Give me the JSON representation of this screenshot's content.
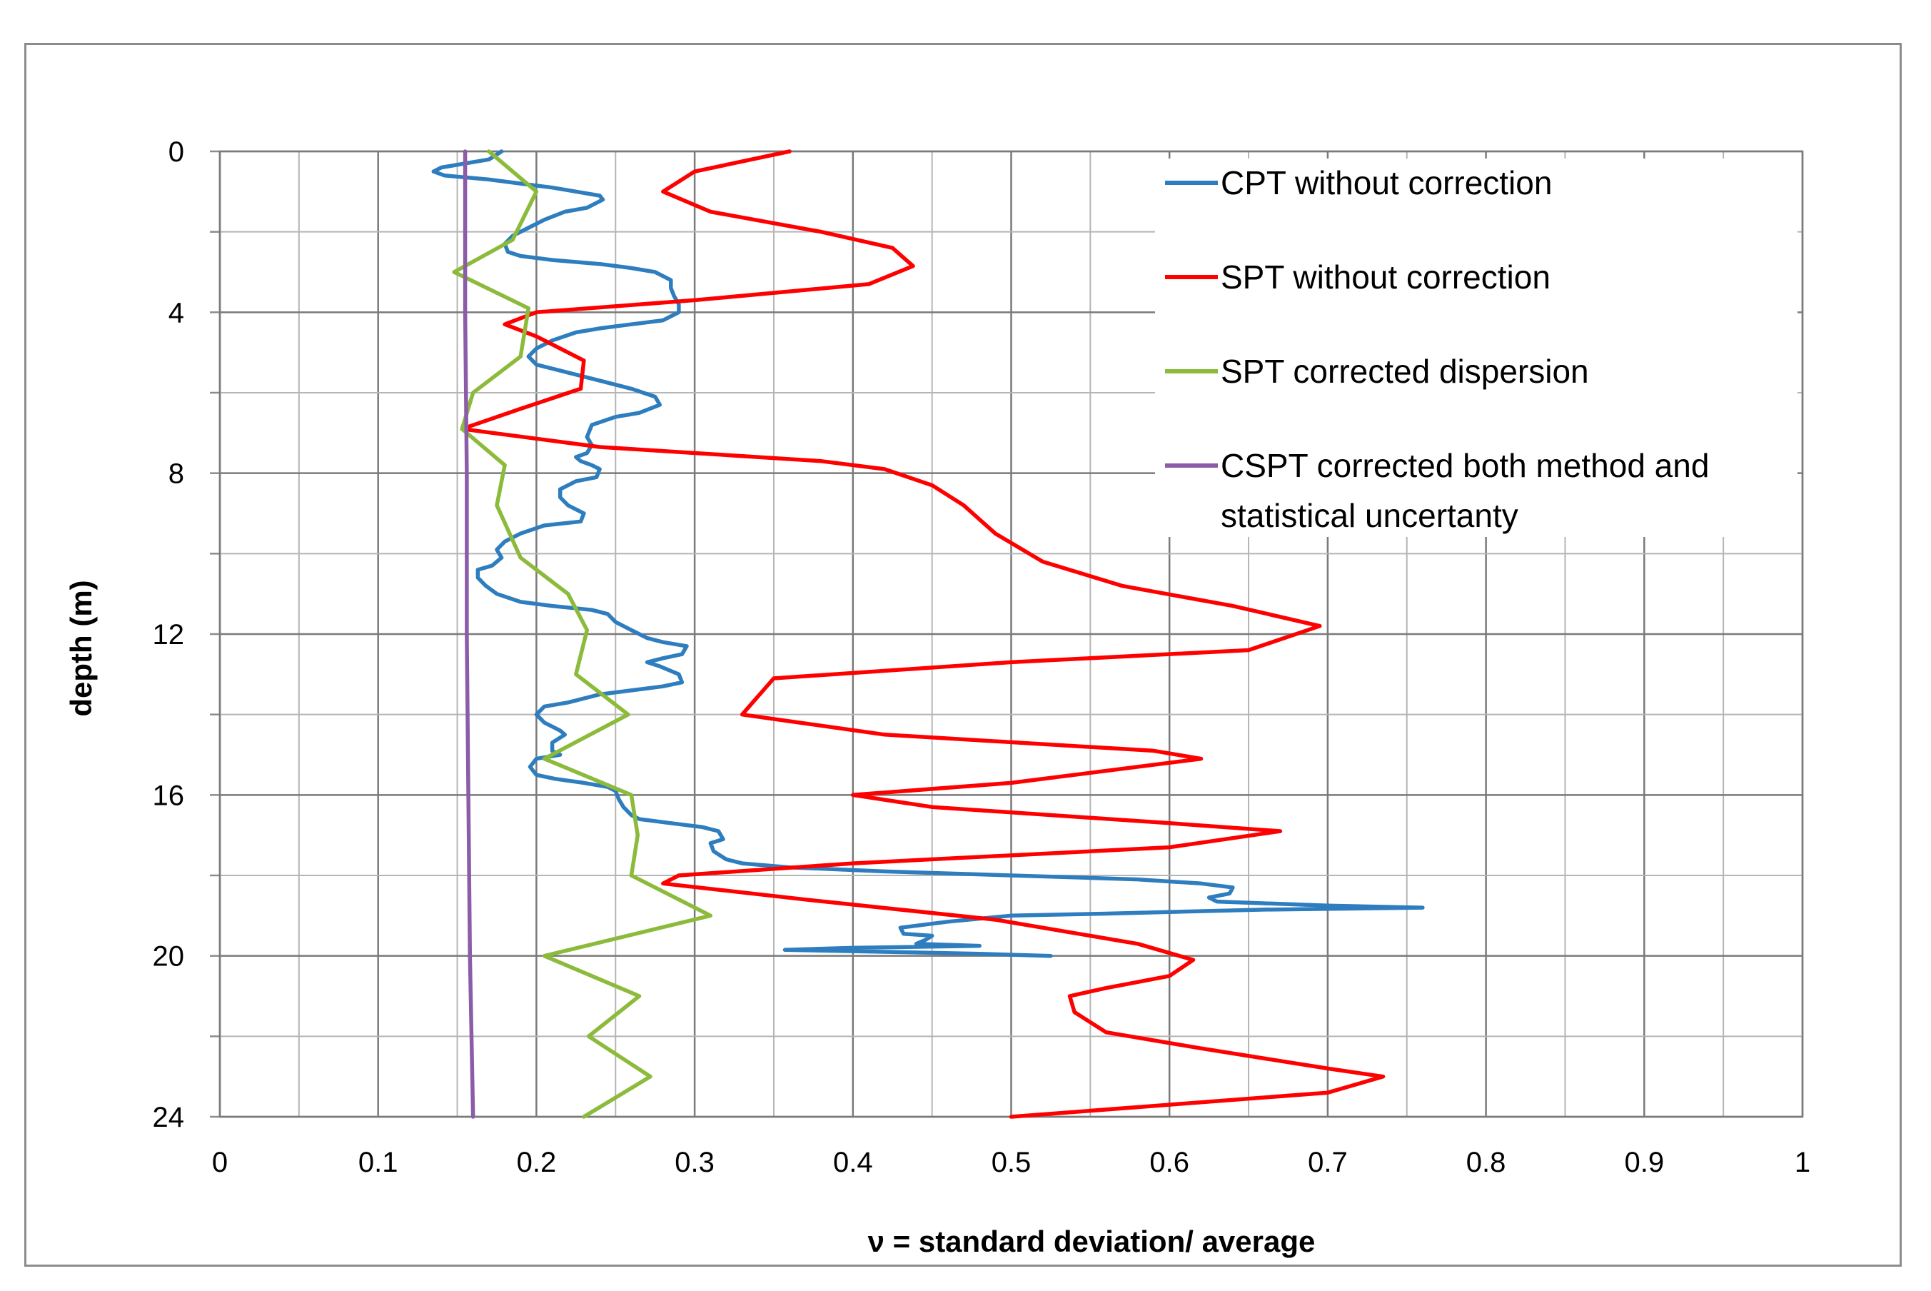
{
  "chart_data": {
    "type": "line",
    "title": "",
    "xlabel": "ν = standard deviation/ average",
    "ylabel": "depth  (m)",
    "xlim": [
      0,
      1
    ],
    "ylim": [
      0,
      24
    ],
    "y_inverted": true,
    "x_ticks": [
      "0",
      "0.1",
      "0.2",
      "0.3",
      "0.4",
      "0.5",
      "0.6",
      "0.7",
      "0.8",
      "0.9",
      "1"
    ],
    "y_ticks": [
      "0",
      "4",
      "8",
      "12",
      "16",
      "20",
      "24"
    ],
    "grid": true,
    "legend_position": "top-right",
    "colors": {
      "cpt": "#2e7ebf",
      "spt": "#ff0000",
      "spt_corrected": "#8cbb3c",
      "cspt": "#8b5ca8",
      "grid": "#8c8c8c",
      "axis": "#8c8c8c"
    },
    "series": [
      {
        "name": "CPT without correction",
        "color_key": "cpt",
        "points": [
          [
            0.178,
            0.0
          ],
          [
            0.17,
            0.2
          ],
          [
            0.14,
            0.4
          ],
          [
            0.135,
            0.5
          ],
          [
            0.142,
            0.6
          ],
          [
            0.17,
            0.7
          ],
          [
            0.19,
            0.8
          ],
          [
            0.21,
            0.9
          ],
          [
            0.225,
            1.0
          ],
          [
            0.24,
            1.1
          ],
          [
            0.242,
            1.2
          ],
          [
            0.232,
            1.4
          ],
          [
            0.218,
            1.5
          ],
          [
            0.205,
            1.7
          ],
          [
            0.195,
            1.9
          ],
          [
            0.185,
            2.1
          ],
          [
            0.18,
            2.3
          ],
          [
            0.182,
            2.5
          ],
          [
            0.19,
            2.6
          ],
          [
            0.21,
            2.7
          ],
          [
            0.24,
            2.8
          ],
          [
            0.26,
            2.9
          ],
          [
            0.275,
            3.0
          ],
          [
            0.285,
            3.2
          ],
          [
            0.285,
            3.4
          ],
          [
            0.287,
            3.6
          ],
          [
            0.29,
            3.8
          ],
          [
            0.29,
            4.0
          ],
          [
            0.28,
            4.2
          ],
          [
            0.26,
            4.3
          ],
          [
            0.24,
            4.4
          ],
          [
            0.225,
            4.5
          ],
          [
            0.21,
            4.7
          ],
          [
            0.2,
            4.9
          ],
          [
            0.195,
            5.1
          ],
          [
            0.2,
            5.3
          ],
          [
            0.22,
            5.5
          ],
          [
            0.24,
            5.7
          ],
          [
            0.26,
            5.9
          ],
          [
            0.275,
            6.1
          ],
          [
            0.278,
            6.3
          ],
          [
            0.265,
            6.5
          ],
          [
            0.25,
            6.6
          ],
          [
            0.235,
            6.8
          ],
          [
            0.232,
            7.1
          ],
          [
            0.235,
            7.3
          ],
          [
            0.232,
            7.5
          ],
          [
            0.225,
            7.6
          ],
          [
            0.228,
            7.7
          ],
          [
            0.235,
            7.8
          ],
          [
            0.24,
            7.9
          ],
          [
            0.238,
            8.1
          ],
          [
            0.225,
            8.2
          ],
          [
            0.215,
            8.4
          ],
          [
            0.215,
            8.6
          ],
          [
            0.22,
            8.8
          ],
          [
            0.23,
            9.0
          ],
          [
            0.228,
            9.2
          ],
          [
            0.205,
            9.3
          ],
          [
            0.19,
            9.5
          ],
          [
            0.18,
            9.7
          ],
          [
            0.175,
            9.9
          ],
          [
            0.178,
            10.1
          ],
          [
            0.172,
            10.3
          ],
          [
            0.163,
            10.4
          ],
          [
            0.163,
            10.6
          ],
          [
            0.168,
            10.8
          ],
          [
            0.175,
            11.0
          ],
          [
            0.19,
            11.2
          ],
          [
            0.21,
            11.3
          ],
          [
            0.235,
            11.4
          ],
          [
            0.245,
            11.5
          ],
          [
            0.25,
            11.7
          ],
          [
            0.26,
            11.9
          ],
          [
            0.265,
            12.0
          ],
          [
            0.27,
            12.1
          ],
          [
            0.28,
            12.2
          ],
          [
            0.295,
            12.3
          ],
          [
            0.292,
            12.5
          ],
          [
            0.28,
            12.6
          ],
          [
            0.27,
            12.7
          ],
          [
            0.278,
            12.8
          ],
          [
            0.29,
            13.0
          ],
          [
            0.292,
            13.2
          ],
          [
            0.28,
            13.3
          ],
          [
            0.26,
            13.4
          ],
          [
            0.24,
            13.5
          ],
          [
            0.22,
            13.7
          ],
          [
            0.205,
            13.8
          ],
          [
            0.2,
            14.0
          ],
          [
            0.205,
            14.2
          ],
          [
            0.215,
            14.4
          ],
          [
            0.218,
            14.5
          ],
          [
            0.21,
            14.7
          ],
          [
            0.21,
            14.9
          ],
          [
            0.215,
            15.0
          ],
          [
            0.2,
            15.1
          ],
          [
            0.196,
            15.3
          ],
          [
            0.2,
            15.5
          ],
          [
            0.212,
            15.6
          ],
          [
            0.23,
            15.7
          ],
          [
            0.245,
            15.8
          ],
          [
            0.25,
            15.9
          ],
          [
            0.252,
            16.1
          ],
          [
            0.255,
            16.3
          ],
          [
            0.26,
            16.5
          ],
          [
            0.265,
            16.6
          ],
          [
            0.285,
            16.7
          ],
          [
            0.305,
            16.8
          ],
          [
            0.315,
            16.9
          ],
          [
            0.318,
            17.1
          ],
          [
            0.31,
            17.2
          ],
          [
            0.312,
            17.4
          ],
          [
            0.32,
            17.6
          ],
          [
            0.33,
            17.7
          ],
          [
            0.36,
            17.8
          ],
          [
            0.42,
            17.9
          ],
          [
            0.5,
            18.0
          ],
          [
            0.58,
            18.1
          ],
          [
            0.62,
            18.2
          ],
          [
            0.64,
            18.3
          ],
          [
            0.638,
            18.45
          ],
          [
            0.625,
            18.55
          ],
          [
            0.63,
            18.65
          ],
          [
            0.7,
            18.75
          ],
          [
            0.76,
            18.8
          ],
          [
            0.66,
            18.85
          ],
          [
            0.56,
            18.95
          ],
          [
            0.5,
            19.0
          ],
          [
            0.46,
            19.15
          ],
          [
            0.43,
            19.3
          ],
          [
            0.432,
            19.45
          ],
          [
            0.45,
            19.5
          ],
          [
            0.446,
            19.6
          ],
          [
            0.44,
            19.7
          ],
          [
            0.48,
            19.75
          ],
          [
            0.4,
            19.8
          ],
          [
            0.357,
            19.85
          ],
          [
            0.42,
            19.9
          ],
          [
            0.48,
            19.95
          ],
          [
            0.525,
            20.0
          ]
        ]
      },
      {
        "name": "SPT without correction",
        "color_key": "spt",
        "points": [
          [
            0.36,
            0.0
          ],
          [
            0.3,
            0.5
          ],
          [
            0.28,
            1.0
          ],
          [
            0.31,
            1.5
          ],
          [
            0.38,
            2.0
          ],
          [
            0.425,
            2.4
          ],
          [
            0.438,
            2.85
          ],
          [
            0.41,
            3.3
          ],
          [
            0.3,
            3.7
          ],
          [
            0.2,
            4.0
          ],
          [
            0.18,
            4.3
          ],
          [
            0.2,
            4.6
          ],
          [
            0.23,
            5.2
          ],
          [
            0.228,
            5.9
          ],
          [
            0.19,
            6.4
          ],
          [
            0.153,
            6.9
          ],
          [
            0.24,
            7.35
          ],
          [
            0.38,
            7.7
          ],
          [
            0.42,
            7.9
          ],
          [
            0.45,
            8.3
          ],
          [
            0.47,
            8.8
          ],
          [
            0.49,
            9.5
          ],
          [
            0.52,
            10.2
          ],
          [
            0.57,
            10.8
          ],
          [
            0.64,
            11.3
          ],
          [
            0.695,
            11.8
          ],
          [
            0.65,
            12.4
          ],
          [
            0.5,
            12.7
          ],
          [
            0.35,
            13.1
          ],
          [
            0.33,
            14.0
          ],
          [
            0.42,
            14.5
          ],
          [
            0.59,
            14.9
          ],
          [
            0.62,
            15.1
          ],
          [
            0.5,
            15.7
          ],
          [
            0.4,
            16.0
          ],
          [
            0.45,
            16.3
          ],
          [
            0.6,
            16.7
          ],
          [
            0.67,
            16.9
          ],
          [
            0.6,
            17.3
          ],
          [
            0.4,
            17.7
          ],
          [
            0.29,
            18.0
          ],
          [
            0.28,
            18.2
          ],
          [
            0.37,
            18.6
          ],
          [
            0.49,
            19.1
          ],
          [
            0.58,
            19.7
          ],
          [
            0.615,
            20.1
          ],
          [
            0.6,
            20.5
          ],
          [
            0.56,
            20.8
          ],
          [
            0.537,
            21.0
          ],
          [
            0.54,
            21.4
          ],
          [
            0.56,
            21.9
          ],
          [
            0.62,
            22.3
          ],
          [
            0.7,
            22.8
          ],
          [
            0.735,
            23.0
          ],
          [
            0.7,
            23.4
          ],
          [
            0.6,
            23.7
          ],
          [
            0.5,
            24.0
          ]
        ]
      },
      {
        "name": "SPT corrected dispersion",
        "color_key": "spt_corrected",
        "points": [
          [
            0.17,
            0.0
          ],
          [
            0.2,
            1.0
          ],
          [
            0.185,
            2.2
          ],
          [
            0.148,
            3.0
          ],
          [
            0.195,
            3.9
          ],
          [
            0.19,
            5.1
          ],
          [
            0.16,
            6.0
          ],
          [
            0.153,
            6.9
          ],
          [
            0.18,
            7.8
          ],
          [
            0.175,
            8.8
          ],
          [
            0.19,
            10.1
          ],
          [
            0.22,
            11.0
          ],
          [
            0.232,
            11.9
          ],
          [
            0.225,
            13.0
          ],
          [
            0.258,
            14.0
          ],
          [
            0.205,
            15.1
          ],
          [
            0.26,
            16.0
          ],
          [
            0.264,
            17.0
          ],
          [
            0.26,
            18.0
          ],
          [
            0.31,
            19.0
          ],
          [
            0.205,
            20.0
          ],
          [
            0.265,
            21.0
          ],
          [
            0.233,
            22.0
          ],
          [
            0.272,
            23.0
          ],
          [
            0.23,
            24.0
          ]
        ]
      },
      {
        "name": "CSPT corrected both method and statistical uncertanty",
        "legend_lines": [
          "CSPT corrected both method and",
          "statistical uncertanty"
        ],
        "color_key": "cspt",
        "points": [
          [
            0.155,
            0.0
          ],
          [
            0.155,
            4.0
          ],
          [
            0.156,
            8.0
          ],
          [
            0.156,
            12.0
          ],
          [
            0.157,
            16.0
          ],
          [
            0.158,
            20.0
          ],
          [
            0.16,
            24.0
          ]
        ]
      }
    ]
  }
}
